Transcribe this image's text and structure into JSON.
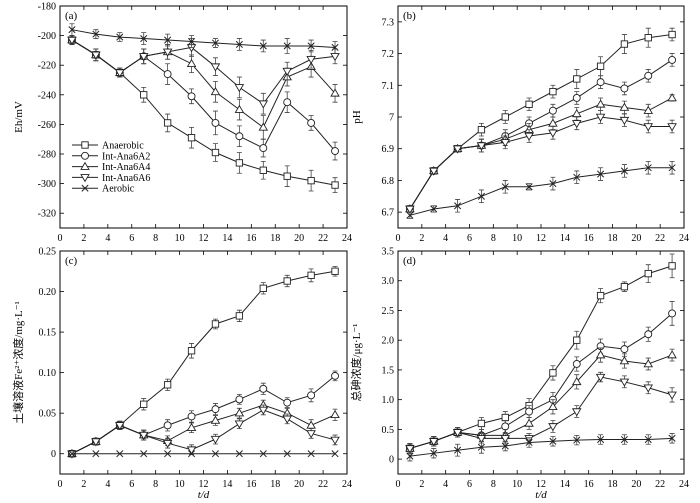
{
  "chart_data": [
    {
      "type": "line",
      "panel_label": "(a)",
      "xlabel": "",
      "ylabel": "Eh/mV",
      "xlim": [
        0,
        24
      ],
      "ylim": [
        -330,
        -180
      ],
      "xticks": [
        0,
        2,
        4,
        6,
        8,
        10,
        12,
        14,
        16,
        18,
        20,
        22,
        24
      ],
      "yticks": [
        -180,
        -200,
        -220,
        -240,
        -260,
        -280,
        -300,
        -320
      ],
      "legend_position": "left-bottom",
      "x": [
        1,
        3,
        5,
        7,
        9,
        11,
        13,
        15,
        17,
        19,
        21,
        23
      ],
      "series": [
        {
          "name": "Anaerobic",
          "marker": "square",
          "values": [
            -203,
            -213,
            -225,
            -240,
            -259,
            -269,
            -279,
            -286,
            -291,
            -295,
            -298,
            -301
          ],
          "errors": [
            3,
            4,
            3,
            5,
            6,
            7,
            6,
            7,
            6,
            7,
            7,
            5
          ]
        },
        {
          "name": "Int-Ana6A2",
          "marker": "circle",
          "values": [
            -203,
            -213,
            -225,
            -214,
            -226,
            -241,
            -259,
            -268,
            -276,
            -245,
            -259,
            -278
          ],
          "errors": [
            3,
            4,
            3,
            5,
            7,
            5,
            8,
            7,
            6,
            7,
            5,
            6
          ]
        },
        {
          "name": "Int-Ana6A4",
          "marker": "triangle-up",
          "values": [
            -203,
            -213,
            -225,
            -214,
            -211,
            -219,
            -238,
            -250,
            -262,
            -228,
            -221,
            -239
          ],
          "errors": [
            3,
            4,
            3,
            5,
            5,
            6,
            7,
            7,
            8,
            6,
            7,
            6
          ]
        },
        {
          "name": "Int-Ana6A6",
          "marker": "triangle-down",
          "values": [
            -203,
            -213,
            -225,
            -214,
            -211,
            -208,
            -221,
            -235,
            -246,
            -224,
            -216,
            -214
          ],
          "errors": [
            3,
            4,
            3,
            5,
            5,
            6,
            6,
            7,
            7,
            6,
            6,
            5
          ]
        },
        {
          "name": "Aerobic",
          "marker": "x",
          "values": [
            -196,
            -199,
            -201,
            -202,
            -203,
            -204,
            -205,
            -206,
            -207,
            -207,
            -207,
            -208
          ],
          "errors": [
            4,
            3,
            3,
            4,
            4,
            4,
            3,
            4,
            4,
            5,
            4,
            4
          ]
        }
      ]
    },
    {
      "type": "line",
      "panel_label": "(b)",
      "xlabel": "",
      "ylabel": "pH",
      "xlim": [
        0,
        24
      ],
      "ylim": [
        6.65,
        7.35
      ],
      "xticks": [
        0,
        2,
        4,
        6,
        8,
        10,
        12,
        14,
        16,
        18,
        20,
        22,
        24
      ],
      "yticks": [
        6.7,
        6.8,
        6.9,
        7.0,
        7.1,
        7.2,
        7.3
      ],
      "x": [
        1,
        3,
        5,
        7,
        9,
        11,
        13,
        15,
        17,
        19,
        21,
        23
      ],
      "series": [
        {
          "name": "Anaerobic",
          "marker": "square",
          "values": [
            6.71,
            6.83,
            6.9,
            6.96,
            7.0,
            7.04,
            7.08,
            7.12,
            7.16,
            7.23,
            7.25,
            7.26
          ],
          "errors": [
            0.01,
            0.01,
            0.01,
            0.02,
            0.02,
            0.02,
            0.02,
            0.03,
            0.03,
            0.03,
            0.03,
            0.02
          ]
        },
        {
          "name": "Int-Ana6A2",
          "marker": "circle",
          "values": [
            6.71,
            6.83,
            6.9,
            6.91,
            6.94,
            6.98,
            7.02,
            7.06,
            7.11,
            7.09,
            7.13,
            7.18
          ],
          "errors": [
            0.01,
            0.01,
            0.01,
            0.02,
            0.02,
            0.02,
            0.02,
            0.02,
            0.02,
            0.02,
            0.02,
            0.02
          ]
        },
        {
          "name": "Int-Ana6A4",
          "marker": "triangle-up",
          "values": [
            6.71,
            6.83,
            6.9,
            6.91,
            6.93,
            6.96,
            6.98,
            7.01,
            7.04,
            7.03,
            7.02,
            7.06
          ],
          "errors": [
            0.01,
            0.01,
            0.01,
            0.02,
            0.02,
            0.02,
            0.02,
            0.02,
            0.02,
            0.02,
            0.02,
            0.01
          ]
        },
        {
          "name": "Int-Ana6A6",
          "marker": "triangle-down",
          "values": [
            6.71,
            6.83,
            6.9,
            6.91,
            6.92,
            6.94,
            6.95,
            6.98,
            7.0,
            6.99,
            6.97,
            6.97
          ],
          "errors": [
            0.01,
            0.01,
            0.01,
            0.02,
            0.02,
            0.02,
            0.02,
            0.02,
            0.02,
            0.02,
            0.02,
            0.02
          ]
        },
        {
          "name": "Aerobic",
          "marker": "x",
          "values": [
            6.69,
            6.71,
            6.72,
            6.75,
            6.78,
            6.78,
            6.79,
            6.81,
            6.82,
            6.83,
            6.84,
            6.84
          ],
          "errors": [
            0.01,
            0.01,
            0.02,
            0.02,
            0.02,
            0.01,
            0.02,
            0.02,
            0.02,
            0.02,
            0.02,
            0.02
          ]
        }
      ]
    },
    {
      "type": "line",
      "panel_label": "(c)",
      "xlabel": "t/d",
      "ylabel": "土壤溶液Fe²⁺浓度/mg·L⁻¹",
      "xlim": [
        0,
        24
      ],
      "ylim": [
        -0.025,
        0.25
      ],
      "xticks": [
        0,
        2,
        4,
        6,
        8,
        10,
        12,
        14,
        16,
        18,
        20,
        22,
        24
      ],
      "yticks": [
        0,
        0.05,
        0.1,
        0.15,
        0.2,
        0.25
      ],
      "ytick_labels": [
        "0",
        "0.05",
        "0.10",
        "0.15",
        "0.20",
        "0.25"
      ],
      "x": [
        1,
        3,
        5,
        7,
        9,
        11,
        13,
        15,
        17,
        19,
        21,
        23
      ],
      "series": [
        {
          "name": "Anaerobic",
          "marker": "square",
          "values": [
            0,
            0.015,
            0.035,
            0.061,
            0.085,
            0.127,
            0.16,
            0.17,
            0.204,
            0.213,
            0.22,
            0.225
          ],
          "errors": [
            0.002,
            0.004,
            0.005,
            0.007,
            0.007,
            0.009,
            0.006,
            0.007,
            0.007,
            0.007,
            0.008,
            0.006
          ]
        },
        {
          "name": "Int-Ana6A2",
          "marker": "circle",
          "values": [
            0,
            0.015,
            0.035,
            0.023,
            0.035,
            0.046,
            0.055,
            0.067,
            0.08,
            0.063,
            0.072,
            0.096
          ],
          "errors": [
            0.002,
            0.004,
            0.005,
            0.006,
            0.007,
            0.007,
            0.007,
            0.006,
            0.007,
            0.006,
            0.008,
            0.006
          ]
        },
        {
          "name": "Int-Ana6A4",
          "marker": "triangle-up",
          "values": [
            0,
            0.015,
            0.035,
            0.023,
            0.016,
            0.032,
            0.041,
            0.05,
            0.06,
            0.05,
            0.035,
            0.048
          ],
          "errors": [
            0.002,
            0.004,
            0.005,
            0.006,
            0.006,
            0.006,
            0.006,
            0.006,
            0.006,
            0.006,
            0.007,
            0.007
          ]
        },
        {
          "name": "Int-Ana6A6",
          "marker": "triangle-down",
          "values": [
            0,
            0.015,
            0.035,
            0.023,
            0.013,
            0.005,
            0.018,
            0.037,
            0.054,
            0.043,
            0.025,
            0.017
          ],
          "errors": [
            0.002,
            0.004,
            0.005,
            0.006,
            0.006,
            0.006,
            0.006,
            0.006,
            0.006,
            0.006,
            0.006,
            0.006
          ]
        },
        {
          "name": "Aerobic",
          "marker": "x",
          "values": [
            0,
            0,
            0,
            0,
            0,
            0,
            0,
            0,
            0,
            0,
            0,
            0
          ],
          "errors": [
            0,
            0,
            0,
            0,
            0,
            0,
            0,
            0,
            0,
            0,
            0,
            0
          ]
        }
      ]
    },
    {
      "type": "line",
      "panel_label": "(d)",
      "xlabel": "t/d",
      "ylabel": "总砷浓度/μg·L⁻¹",
      "xlim": [
        0,
        24
      ],
      "ylim": [
        -0.25,
        3.5
      ],
      "xticks": [
        0,
        2,
        4,
        6,
        8,
        10,
        12,
        14,
        16,
        18,
        20,
        22,
        24
      ],
      "yticks": [
        0,
        0.5,
        1.0,
        1.5,
        2.0,
        2.5,
        3.0,
        3.5
      ],
      "ytick_labels": [
        "0",
        "0.5",
        "1.0",
        "1.5",
        "2.0",
        "2.5",
        "3.0",
        "3.5"
      ],
      "x": [
        1,
        3,
        5,
        7,
        9,
        11,
        13,
        15,
        17,
        19,
        21,
        23
      ],
      "series": [
        {
          "name": "Anaerobic",
          "marker": "square",
          "values": [
            0.18,
            0.3,
            0.45,
            0.6,
            0.7,
            0.9,
            1.45,
            2.0,
            2.75,
            2.9,
            3.12,
            3.25
          ],
          "errors": [
            0.08,
            0.08,
            0.08,
            0.1,
            0.1,
            0.12,
            0.12,
            0.15,
            0.12,
            0.08,
            0.15,
            0.2
          ]
        },
        {
          "name": "Int-Ana6A2",
          "marker": "circle",
          "values": [
            0.18,
            0.3,
            0.45,
            0.4,
            0.55,
            0.8,
            1.0,
            1.6,
            1.9,
            1.85,
            2.1,
            2.45
          ],
          "errors": [
            0.08,
            0.08,
            0.08,
            0.1,
            0.1,
            0.1,
            0.12,
            0.12,
            0.12,
            0.12,
            0.12,
            0.2
          ]
        },
        {
          "name": "Int-Ana6A4",
          "marker": "triangle-up",
          "values": [
            0.18,
            0.3,
            0.45,
            0.4,
            0.4,
            0.6,
            0.88,
            1.3,
            1.75,
            1.65,
            1.6,
            1.75
          ],
          "errors": [
            0.08,
            0.08,
            0.08,
            0.1,
            0.1,
            0.1,
            0.12,
            0.12,
            0.12,
            0.12,
            0.1,
            0.1
          ]
        },
        {
          "name": "Int-Ana6A6",
          "marker": "triangle-down",
          "values": [
            0.18,
            0.3,
            0.45,
            0.35,
            0.35,
            0.35,
            0.55,
            0.8,
            1.38,
            1.3,
            1.2,
            1.08
          ],
          "errors": [
            0.08,
            0.08,
            0.08,
            0.08,
            0.08,
            0.08,
            0.1,
            0.1,
            0.08,
            0.1,
            0.1,
            0.12
          ]
        },
        {
          "name": "Aerobic",
          "marker": "x",
          "values": [
            0.05,
            0.1,
            0.15,
            0.2,
            0.22,
            0.28,
            0.3,
            0.32,
            0.33,
            0.33,
            0.33,
            0.35
          ],
          "errors": [
            0.08,
            0.08,
            0.1,
            0.1,
            0.08,
            0.08,
            0.08,
            0.08,
            0.08,
            0.08,
            0.08,
            0.08
          ]
        }
      ]
    }
  ]
}
